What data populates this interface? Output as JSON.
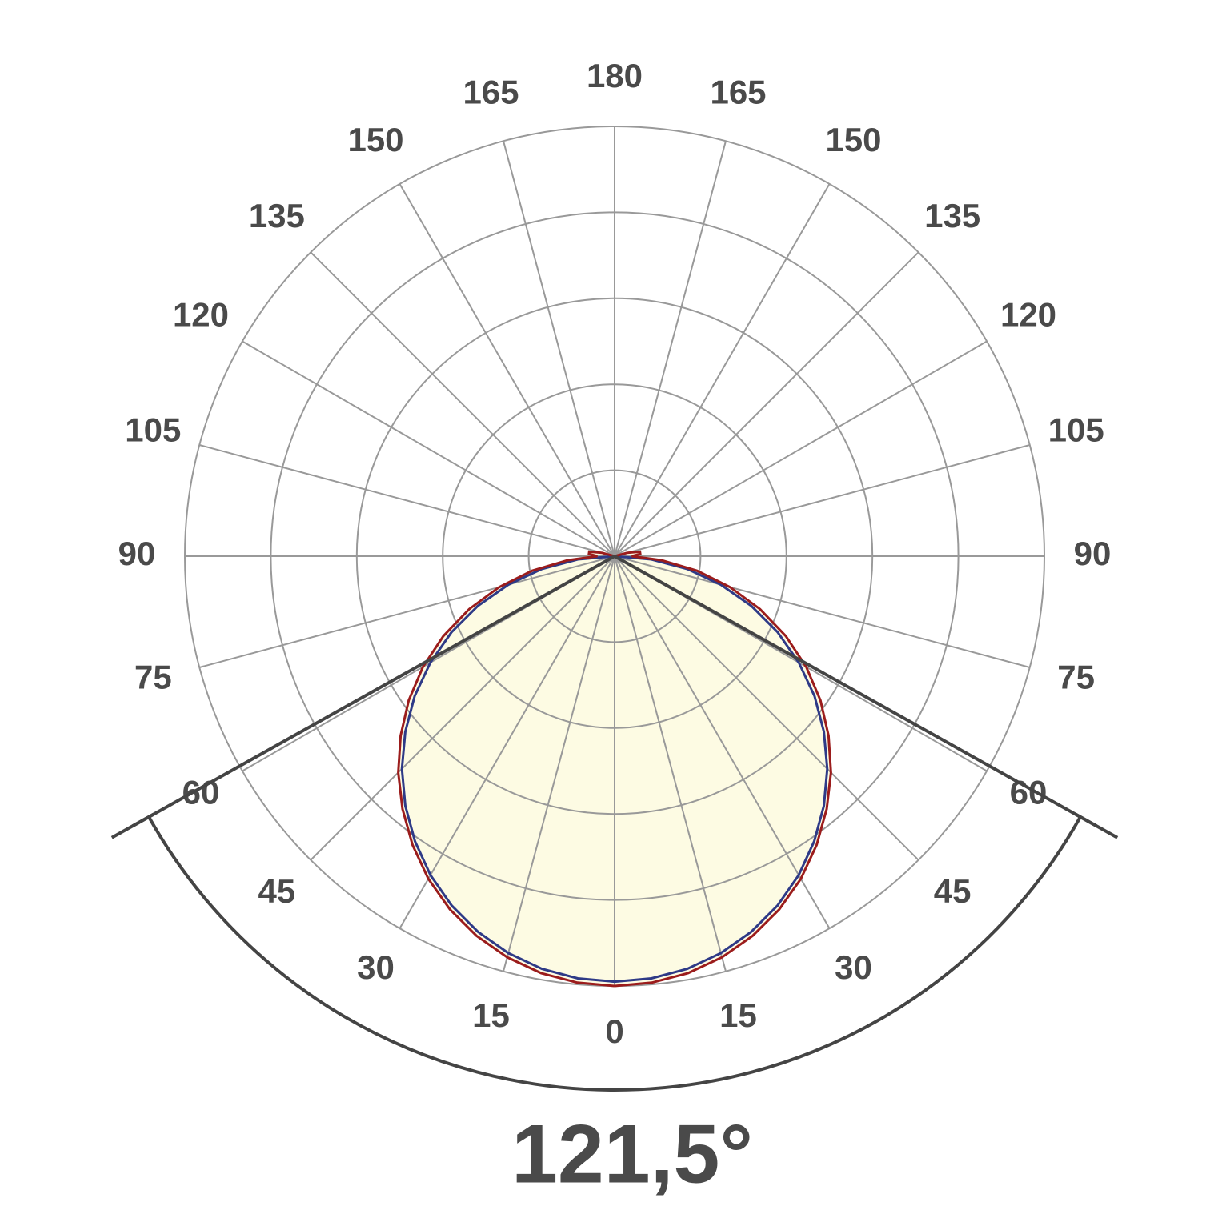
{
  "chart_data": {
    "type": "polar",
    "rlim": [
      0,
      100
    ],
    "rgrid": [
      20,
      40,
      60,
      80,
      100
    ],
    "angle_ticks": [
      0,
      15,
      30,
      45,
      60,
      75,
      90,
      105,
      120,
      135,
      150,
      165,
      180
    ],
    "angles": [
      0,
      5,
      10,
      15,
      20,
      25,
      30,
      35,
      40,
      45,
      50,
      55,
      60,
      65,
      70,
      75,
      80,
      85,
      90,
      95,
      100,
      105,
      110
    ],
    "series": [
      {
        "color": "#2e3a87",
        "values": [
          99,
          98.6,
          97.5,
          95.6,
          93,
          89.7,
          85.7,
          81,
          75.8,
          70,
          63.6,
          56.8,
          49.5,
          41.9,
          33.9,
          25.6,
          17.2,
          8.6,
          0,
          0,
          0,
          0,
          0
        ]
      },
      {
        "color": "#9b1c1c",
        "fill": "#fdfbe3",
        "values": [
          100,
          99.6,
          98.5,
          96.6,
          94,
          90.7,
          86.7,
          82,
          76.8,
          71.2,
          65,
          58.5,
          51.5,
          44,
          36,
          27.8,
          19.5,
          11,
          4,
          6,
          6,
          3,
          0
        ]
      }
    ],
    "beam_angle": 121.5,
    "beam_angle_label": "121,5°",
    "grid_color": "#999999",
    "beam_color": "#444444"
  }
}
